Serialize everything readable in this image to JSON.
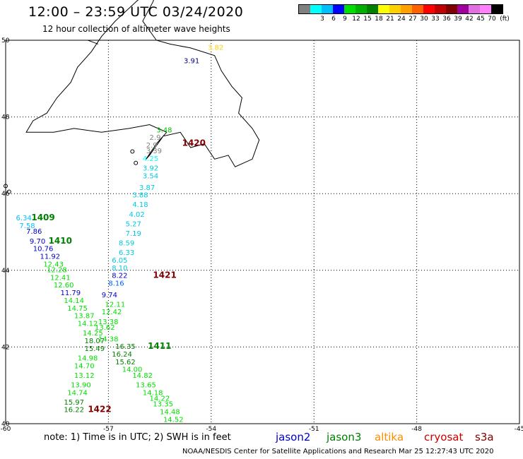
{
  "header": {
    "title": "12:00 – 23:59 UTC 03/24/2020",
    "subtitle": "12 hour collection of altimeter wave heights"
  },
  "legend": {
    "unit": "(ft)",
    "bins": [
      {
        "label": "",
        "color": "#808080"
      },
      {
        "label": "3",
        "color": "#00ffff"
      },
      {
        "label": "6",
        "color": "#00bfff"
      },
      {
        "label": "9",
        "color": "#0000ff"
      },
      {
        "label": "12",
        "color": "#00e000"
      },
      {
        "label": "15",
        "color": "#00b000"
      },
      {
        "label": "18",
        "color": "#008000"
      },
      {
        "label": "21",
        "color": "#ffff00"
      },
      {
        "label": "24",
        "color": "#ffd000"
      },
      {
        "label": "27",
        "color": "#ffa000"
      },
      {
        "label": "30",
        "color": "#ff6000"
      },
      {
        "label": "33",
        "color": "#ff0000"
      },
      {
        "label": "36",
        "color": "#c00000"
      },
      {
        "label": "39",
        "color": "#800000"
      },
      {
        "label": "42",
        "color": "#a000a0"
      },
      {
        "label": "45",
        "color": "#e070e0"
      },
      {
        "label": "70",
        "color": "#ff80ff"
      },
      {
        "label": "",
        "color": "#000000"
      }
    ]
  },
  "axes": {
    "lon_ticks": [
      "-60",
      "-57",
      "-54",
      "-51",
      "-48",
      "-45"
    ],
    "lat_ticks": [
      "50",
      "48",
      "46",
      "44",
      "42",
      "40"
    ]
  },
  "tracks": {
    "jason2_color": "#0000cc",
    "jason3_color": "#008000",
    "altika_color": "#ff8c00",
    "cryosat_color": "#cc0000",
    "s3a_color": "#800000",
    "time_labels": [
      {
        "text": "1409",
        "color": "#008000",
        "lon": -59.25,
        "lat": 45.3
      },
      {
        "text": "1410",
        "color": "#008000",
        "lon": -58.75,
        "lat": 44.7
      },
      {
        "text": "1420",
        "color": "#800000",
        "lon": -54.85,
        "lat": 47.25
      },
      {
        "text": "1421",
        "color": "#800000",
        "lon": -55.7,
        "lat": 43.8
      },
      {
        "text": "1411",
        "color": "#008000",
        "lon": -55.85,
        "lat": 41.95
      },
      {
        "text": "1422",
        "color": "#800000",
        "lon": -57.6,
        "lat": 40.3
      }
    ],
    "values": [
      {
        "text": "3.82",
        "color": "#ffd000",
        "lon": -54.1,
        "lat": 49.75
      },
      {
        "text": "3.91",
        "color": "#000080",
        "lon": -54.8,
        "lat": 49.4
      },
      {
        "text": "3.48",
        "color": "#00c000",
        "lon": -55.6,
        "lat": 47.6
      },
      {
        "text": "2.9",
        "color": "#808080",
        "lon": -55.8,
        "lat": 47.4
      },
      {
        "text": "2.9",
        "color": "#808080",
        "lon": -55.9,
        "lat": 47.2
      },
      {
        "text": "3.39",
        "color": "#808080",
        "lon": -55.9,
        "lat": 47.05
      },
      {
        "text": "4.25",
        "color": "#00ffff",
        "lon": -56.0,
        "lat": 46.85
      },
      {
        "text": "3.92",
        "color": "#00c8e0",
        "lon": -56.0,
        "lat": 46.6
      },
      {
        "text": "3.54",
        "color": "#00c8e0",
        "lon": -56.0,
        "lat": 46.4
      },
      {
        "text": "3.87",
        "color": "#00c8e0",
        "lon": -56.1,
        "lat": 46.1
      },
      {
        "text": "3.88",
        "color": "#00c8e0",
        "lon": -56.3,
        "lat": 45.9
      },
      {
        "text": "4.18",
        "color": "#00c8e0",
        "lon": -56.3,
        "lat": 45.65
      },
      {
        "text": "4.02",
        "color": "#00c8e0",
        "lon": -56.4,
        "lat": 45.4
      },
      {
        "text": "5.27",
        "color": "#00c8e0",
        "lon": -56.5,
        "lat": 45.15
      },
      {
        "text": "7.19",
        "color": "#00c8e0",
        "lon": -56.5,
        "lat": 44.9
      },
      {
        "text": "8.59",
        "color": "#00c8e0",
        "lon": -56.7,
        "lat": 44.65
      },
      {
        "text": "6.33",
        "color": "#00c8e0",
        "lon": -56.7,
        "lat": 44.4
      },
      {
        "text": "6.05",
        "color": "#00c8e0",
        "lon": -56.9,
        "lat": 44.2
      },
      {
        "text": "8.10",
        "color": "#00c8e0",
        "lon": -56.9,
        "lat": 44.0
      },
      {
        "text": "8.22",
        "color": "#0000cc",
        "lon": -56.9,
        "lat": 43.8
      },
      {
        "text": "8.16",
        "color": "#0060ff",
        "lon": -57.0,
        "lat": 43.6
      },
      {
        "text": "9.74",
        "color": "#0000cc",
        "lon": -57.2,
        "lat": 43.3
      },
      {
        "text": "6.34",
        "color": "#00bfff",
        "lon": -59.7,
        "lat": 45.3
      },
      {
        "text": "7.58",
        "color": "#00bfff",
        "lon": -59.6,
        "lat": 45.1
      },
      {
        "text": "7.86",
        "color": "#0000cc",
        "lon": -59.4,
        "lat": 44.95
      },
      {
        "text": "9.70",
        "color": "#0000cc",
        "lon": -59.3,
        "lat": 44.7
      },
      {
        "text": "10.76",
        "color": "#0000cc",
        "lon": -59.2,
        "lat": 44.5
      },
      {
        "text": "11.92",
        "color": "#0000cc",
        "lon": -59.0,
        "lat": 44.3
      },
      {
        "text": "12.43",
        "color": "#00e000",
        "lon": -58.9,
        "lat": 44.1
      },
      {
        "text": "12.28",
        "color": "#00e000",
        "lon": -58.8,
        "lat": 43.95
      },
      {
        "text": "12.41",
        "color": "#00e000",
        "lon": -58.7,
        "lat": 43.75
      },
      {
        "text": "12.60",
        "color": "#00e000",
        "lon": -58.6,
        "lat": 43.55
      },
      {
        "text": "11.79",
        "color": "#0000cc",
        "lon": -58.4,
        "lat": 43.35
      },
      {
        "text": "14.14",
        "color": "#00e000",
        "lon": -58.3,
        "lat": 43.15
      },
      {
        "text": "14.75",
        "color": "#00e000",
        "lon": -58.2,
        "lat": 42.95
      },
      {
        "text": "13.87",
        "color": "#00e000",
        "lon": -58.0,
        "lat": 42.75
      },
      {
        "text": "14.12",
        "color": "#00e000",
        "lon": -57.9,
        "lat": 42.55
      },
      {
        "text": "14.25",
        "color": "#00e000",
        "lon": -57.75,
        "lat": 42.3
      },
      {
        "text": "18.07",
        "color": "#008000",
        "lon": -57.7,
        "lat": 42.1
      },
      {
        "text": "15.49",
        "color": "#008000",
        "lon": -57.7,
        "lat": 41.9
      },
      {
        "text": "14.98",
        "color": "#00e000",
        "lon": -57.9,
        "lat": 41.65
      },
      {
        "text": "14.70",
        "color": "#00e000",
        "lon": -58.0,
        "lat": 41.45
      },
      {
        "text": "13.12",
        "color": "#00e000",
        "lon": -58.0,
        "lat": 41.2
      },
      {
        "text": "13.90",
        "color": "#00e000",
        "lon": -58.1,
        "lat": 40.95
      },
      {
        "text": "14.74",
        "color": "#00e000",
        "lon": -58.2,
        "lat": 40.75
      },
      {
        "text": "15.97",
        "color": "#008000",
        "lon": -58.3,
        "lat": 40.5
      },
      {
        "text": "16.22",
        "color": "#008000",
        "lon": -58.3,
        "lat": 40.3
      },
      {
        "text": "12.11",
        "color": "#00e000",
        "lon": -57.1,
        "lat": 43.05
      },
      {
        "text": "12.42",
        "color": "#00e000",
        "lon": -57.2,
        "lat": 42.85
      },
      {
        "text": "13.38",
        "color": "#00e000",
        "lon": -57.3,
        "lat": 42.6
      },
      {
        "text": "13.62",
        "color": "#00e000",
        "lon": -57.4,
        "lat": 42.45
      },
      {
        "text": "14.38",
        "color": "#00e000",
        "lon": -57.3,
        "lat": 42.15
      },
      {
        "text": "16.35",
        "color": "#008000",
        "lon": -56.8,
        "lat": 41.95
      },
      {
        "text": "16.24",
        "color": "#008000",
        "lon": -56.9,
        "lat": 41.75
      },
      {
        "text": "15.62",
        "color": "#008000",
        "lon": -56.8,
        "lat": 41.55
      },
      {
        "text": "14.00",
        "color": "#00e000",
        "lon": -56.6,
        "lat": 41.35
      },
      {
        "text": "14.82",
        "color": "#00e000",
        "lon": -56.3,
        "lat": 41.2
      },
      {
        "text": "13.65",
        "color": "#00e000",
        "lon": -56.2,
        "lat": 40.95
      },
      {
        "text": "14.18",
        "color": "#00e000",
        "lon": -56.0,
        "lat": 40.75
      },
      {
        "text": "14.22",
        "color": "#00e000",
        "lon": -55.8,
        "lat": 40.6
      },
      {
        "text": "13.35",
        "color": "#00e000",
        "lon": -55.7,
        "lat": 40.45
      },
      {
        "text": "14.48",
        "color": "#00e000",
        "lon": -55.5,
        "lat": 40.25
      },
      {
        "text": "14.52",
        "color": "#00e000",
        "lon": -55.4,
        "lat": 40.05
      }
    ]
  },
  "footer": {
    "note": "note:  1) Time is in UTC;  2) SWH is in feet",
    "credit": "NOAA/NESDIS Center for Satellite Applications and Research    Mar 25 12:27:43 UTC 2020",
    "sat_jason2": "jason2",
    "sat_jason3": "jason3",
    "sat_altika": "altika",
    "sat_cryosat": "cryosat",
    "sat_s3a": "s3a"
  }
}
